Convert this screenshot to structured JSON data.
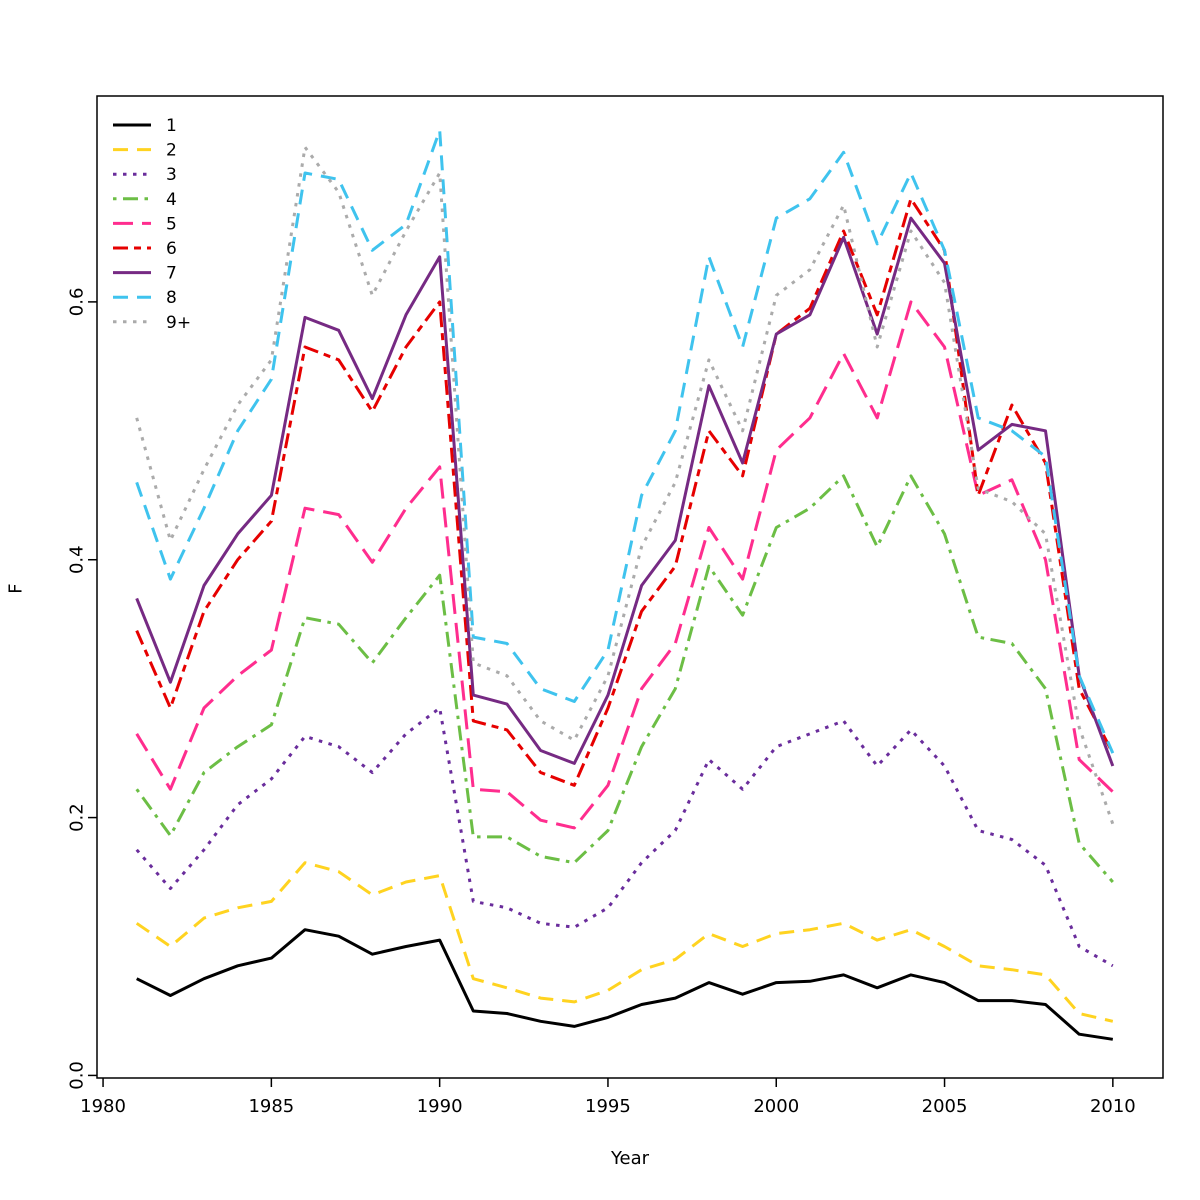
{
  "chart_data": {
    "type": "line",
    "title": "",
    "xlabel": "Year",
    "ylabel": "F",
    "xlim": [
      1979.82,
      2011.49
    ],
    "ylim": [
      -0.002,
      0.7597
    ],
    "x_ticks": [
      1980,
      1985,
      1990,
      1995,
      2000,
      2005,
      2010
    ],
    "y_ticks": [
      0.0,
      0.2,
      0.4,
      0.6
    ],
    "grid": false,
    "legend_position": "topleft",
    "x": [
      1981,
      1982,
      1983,
      1984,
      1985,
      1986,
      1987,
      1988,
      1989,
      1990,
      1991,
      1992,
      1993,
      1994,
      1995,
      1996,
      1997,
      1998,
      1999,
      2000,
      2001,
      2002,
      2003,
      2004,
      2005,
      2006,
      2007,
      2008,
      2009,
      2010
    ],
    "series": [
      {
        "name": "1",
        "color": "#000000",
        "linetype": "solid",
        "values": [
          0.075,
          0.062,
          0.075,
          0.085,
          0.091,
          0.113,
          0.108,
          0.094,
          0.1,
          0.105,
          0.05,
          0.048,
          0.042,
          0.038,
          0.045,
          0.055,
          0.06,
          0.072,
          0.063,
          0.072,
          0.073,
          0.078,
          0.068,
          0.078,
          0.072,
          0.058,
          0.058,
          0.055,
          0.032,
          0.028
        ]
      },
      {
        "name": "2",
        "color": "#FFD320",
        "linetype": "dashed",
        "values": [
          0.118,
          0.1,
          0.122,
          0.13,
          0.135,
          0.165,
          0.158,
          0.14,
          0.15,
          0.155,
          0.075,
          0.068,
          0.06,
          0.057,
          0.066,
          0.082,
          0.09,
          0.11,
          0.1,
          0.11,
          0.113,
          0.118,
          0.105,
          0.113,
          0.1,
          0.085,
          0.082,
          0.078,
          0.048,
          0.042
        ]
      },
      {
        "name": "3",
        "color": "#6A2D9C",
        "linetype": "dotted",
        "values": [
          0.175,
          0.145,
          0.175,
          0.21,
          0.23,
          0.263,
          0.255,
          0.235,
          0.265,
          0.285,
          0.135,
          0.13,
          0.118,
          0.115,
          0.13,
          0.165,
          0.19,
          0.245,
          0.222,
          0.255,
          0.265,
          0.275,
          0.24,
          0.268,
          0.24,
          0.19,
          0.183,
          0.163,
          0.1,
          0.085
        ]
      },
      {
        "name": "4",
        "color": "#6CBE45",
        "linetype": "dotdash",
        "values": [
          0.222,
          0.186,
          0.235,
          0.255,
          0.272,
          0.355,
          0.35,
          0.32,
          0.355,
          0.388,
          0.185,
          0.185,
          0.17,
          0.165,
          0.19,
          0.255,
          0.3,
          0.395,
          0.357,
          0.425,
          0.44,
          0.465,
          0.41,
          0.465,
          0.42,
          0.34,
          0.335,
          0.3,
          0.18,
          0.15
        ]
      },
      {
        "name": "5",
        "color": "#FF2D8E",
        "linetype": "longdash",
        "values": [
          0.265,
          0.222,
          0.285,
          0.31,
          0.33,
          0.44,
          0.435,
          0.398,
          0.44,
          0.472,
          0.222,
          0.22,
          0.198,
          0.192,
          0.225,
          0.3,
          0.335,
          0.425,
          0.385,
          0.485,
          0.51,
          0.56,
          0.51,
          0.6,
          0.565,
          0.45,
          0.462,
          0.4,
          0.245,
          0.22
        ]
      },
      {
        "name": "6",
        "color": "#E60000",
        "linetype": "twodash",
        "values": [
          0.345,
          0.285,
          0.36,
          0.4,
          0.43,
          0.565,
          0.555,
          0.515,
          0.565,
          0.6,
          0.275,
          0.268,
          0.235,
          0.225,
          0.285,
          0.36,
          0.395,
          0.5,
          0.465,
          0.575,
          0.595,
          0.655,
          0.59,
          0.68,
          0.64,
          0.45,
          0.52,
          0.475,
          0.3,
          0.25
        ]
      },
      {
        "name": "7",
        "color": "#762A83",
        "linetype": "solid",
        "values": [
          0.37,
          0.305,
          0.38,
          0.42,
          0.45,
          0.588,
          0.578,
          0.525,
          0.59,
          0.635,
          0.295,
          0.288,
          0.252,
          0.242,
          0.295,
          0.38,
          0.415,
          0.535,
          0.475,
          0.575,
          0.59,
          0.65,
          0.575,
          0.665,
          0.63,
          0.485,
          0.505,
          0.5,
          0.31,
          0.24
        ]
      },
      {
        "name": "8",
        "color": "#3FC3EE",
        "linetype": "dashed",
        "values": [
          0.46,
          0.385,
          0.44,
          0.5,
          0.54,
          0.7,
          0.695,
          0.64,
          0.66,
          0.733,
          0.34,
          0.335,
          0.3,
          0.29,
          0.33,
          0.45,
          0.5,
          0.635,
          0.565,
          0.665,
          0.68,
          0.716,
          0.645,
          0.7,
          0.64,
          0.51,
          0.5,
          0.48,
          0.31,
          0.25
        ]
      },
      {
        "name": "9+",
        "color": "#ABABAB",
        "linetype": "dotted",
        "values": [
          0.51,
          0.415,
          0.47,
          0.52,
          0.555,
          0.72,
          0.685,
          0.605,
          0.655,
          0.7,
          0.32,
          0.31,
          0.275,
          0.26,
          0.31,
          0.41,
          0.46,
          0.555,
          0.5,
          0.605,
          0.625,
          0.675,
          0.565,
          0.655,
          0.615,
          0.455,
          0.445,
          0.42,
          0.27,
          0.195
        ]
      }
    ]
  }
}
